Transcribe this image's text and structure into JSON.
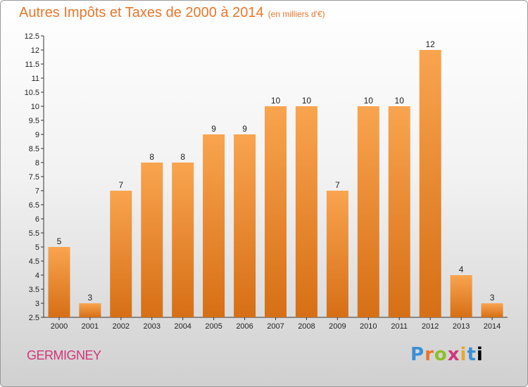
{
  "header": {
    "title": "Autres Impôts et Taxes de 2000 à 2014",
    "unit": "(en milliers d'€)"
  },
  "footer": {
    "location": "GERMIGNEY",
    "brand": "Proxiti"
  },
  "colors": {
    "bar_light": "#f9a44f",
    "bar_dark": "#d66f15",
    "title": "#e8762b",
    "location": "#d2357a"
  },
  "chart_data": {
    "type": "bar",
    "title": "Autres Impôts et Taxes de 2000 à 2014",
    "subtitle": "(en milliers d'€)",
    "xlabel": "",
    "ylabel": "",
    "categories": [
      "2000",
      "2001",
      "2002",
      "2003",
      "2004",
      "2005",
      "2006",
      "2007",
      "2008",
      "2009",
      "2010",
      "2011",
      "2012",
      "2013",
      "2014"
    ],
    "values": [
      5,
      3,
      7,
      8,
      8,
      9,
      9,
      10,
      10,
      7,
      10,
      10,
      12,
      4,
      3
    ],
    "ylim": [
      2.5,
      12.5
    ],
    "yticks": [
      "2.5",
      "3",
      "3.5",
      "4",
      "4.5",
      "5",
      "5.5",
      "6",
      "6.5",
      "7",
      "7.5",
      "8",
      "8.5",
      "9",
      "9.5",
      "10",
      "10.5",
      "11",
      "11.5",
      "12",
      "12.5"
    ],
    "grid": false,
    "legend": "none"
  }
}
